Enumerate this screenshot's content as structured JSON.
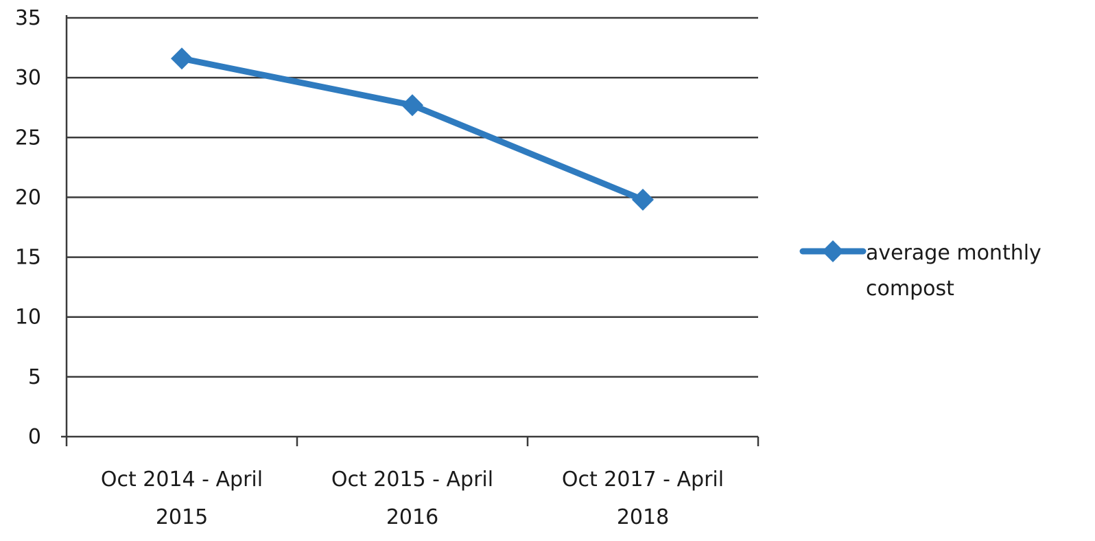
{
  "chart_data": {
    "type": "line",
    "categories": [
      [
        "Oct 2014 - April",
        "2015"
      ],
      [
        "Oct 2015 - April",
        "2016"
      ],
      [
        "Oct 2017 - April",
        "2018"
      ]
    ],
    "series": [
      {
        "name": [
          "average monthly",
          "compost"
        ],
        "values": [
          31.6,
          27.7,
          19.8
        ],
        "color": "#2f7bbf",
        "marker": "diamond"
      }
    ],
    "ylim": [
      0,
      35
    ],
    "yticks": [
      "0",
      "5",
      "10",
      "15",
      "20",
      "25",
      "30",
      "35"
    ],
    "grid": true,
    "legend_position": "right"
  }
}
